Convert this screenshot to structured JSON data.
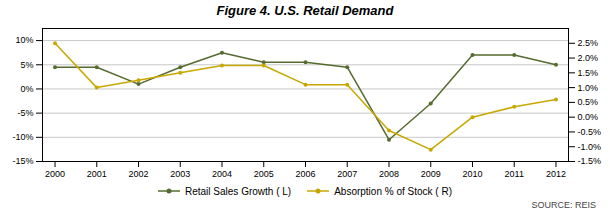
{
  "chart_data": {
    "type": "line",
    "title": "Figure 4.  U.S. Retail Demand",
    "source": "SOURCE:  REIS",
    "x": [
      2000,
      2001,
      2002,
      2003,
      2004,
      2005,
      2006,
      2007,
      2008,
      2009,
      2010,
      2011,
      2012
    ],
    "xlim": [
      1999.7,
      2012.3
    ],
    "xticks": [
      2000,
      2001,
      2002,
      2003,
      2004,
      2005,
      2006,
      2007,
      2008,
      2009,
      2010,
      2011,
      2012
    ],
    "series": [
      {
        "name": "Retail Sales Growth ( L)",
        "color": "#556B2F",
        "marker": "circle",
        "values": [
          4.5,
          4.5,
          1.0,
          4.5,
          7.5,
          5.5,
          5.5,
          4.5,
          -10.5,
          -3.0,
          7.0,
          7.0,
          5.0
        ]
      },
      {
        "name": "Absorption % of Stock ( R)",
        "color": "#C8A800",
        "marker": "circle",
        "axis": "y2",
        "values": [
          2.5,
          1.0,
          1.25,
          1.5,
          1.75,
          1.75,
          1.1,
          1.1,
          -0.45,
          -1.1,
          0.0,
          0.35,
          0.6
        ]
      }
    ],
    "ylim": [
      -15,
      12.5
    ],
    "yticks": [
      {
        "value": -15,
        "label": "-15%"
      },
      {
        "value": -10,
        "label": "-10%"
      },
      {
        "value": -5,
        "label": "-5%"
      },
      {
        "value": 0,
        "label": "0%"
      },
      {
        "value": 5,
        "label": "5%"
      },
      {
        "value": 10,
        "label": "10%"
      }
    ],
    "y2lim": [
      -1.5,
      3.0
    ],
    "y2ticks": [
      {
        "value": -1.5,
        "label": "-1.5%"
      },
      {
        "value": -1.0,
        "label": "-1.0%"
      },
      {
        "value": -0.5,
        "label": "-0.5%"
      },
      {
        "value": 0.0,
        "label": "0.0%"
      },
      {
        "value": 0.5,
        "label": "0.5%"
      },
      {
        "value": 1.0,
        "label": "1.0%"
      },
      {
        "value": 1.5,
        "label": "1.5%"
      },
      {
        "value": 2.0,
        "label": "2.0%"
      },
      {
        "value": 2.5,
        "label": "2.5%"
      }
    ],
    "grid": true,
    "legend": "bottom"
  }
}
